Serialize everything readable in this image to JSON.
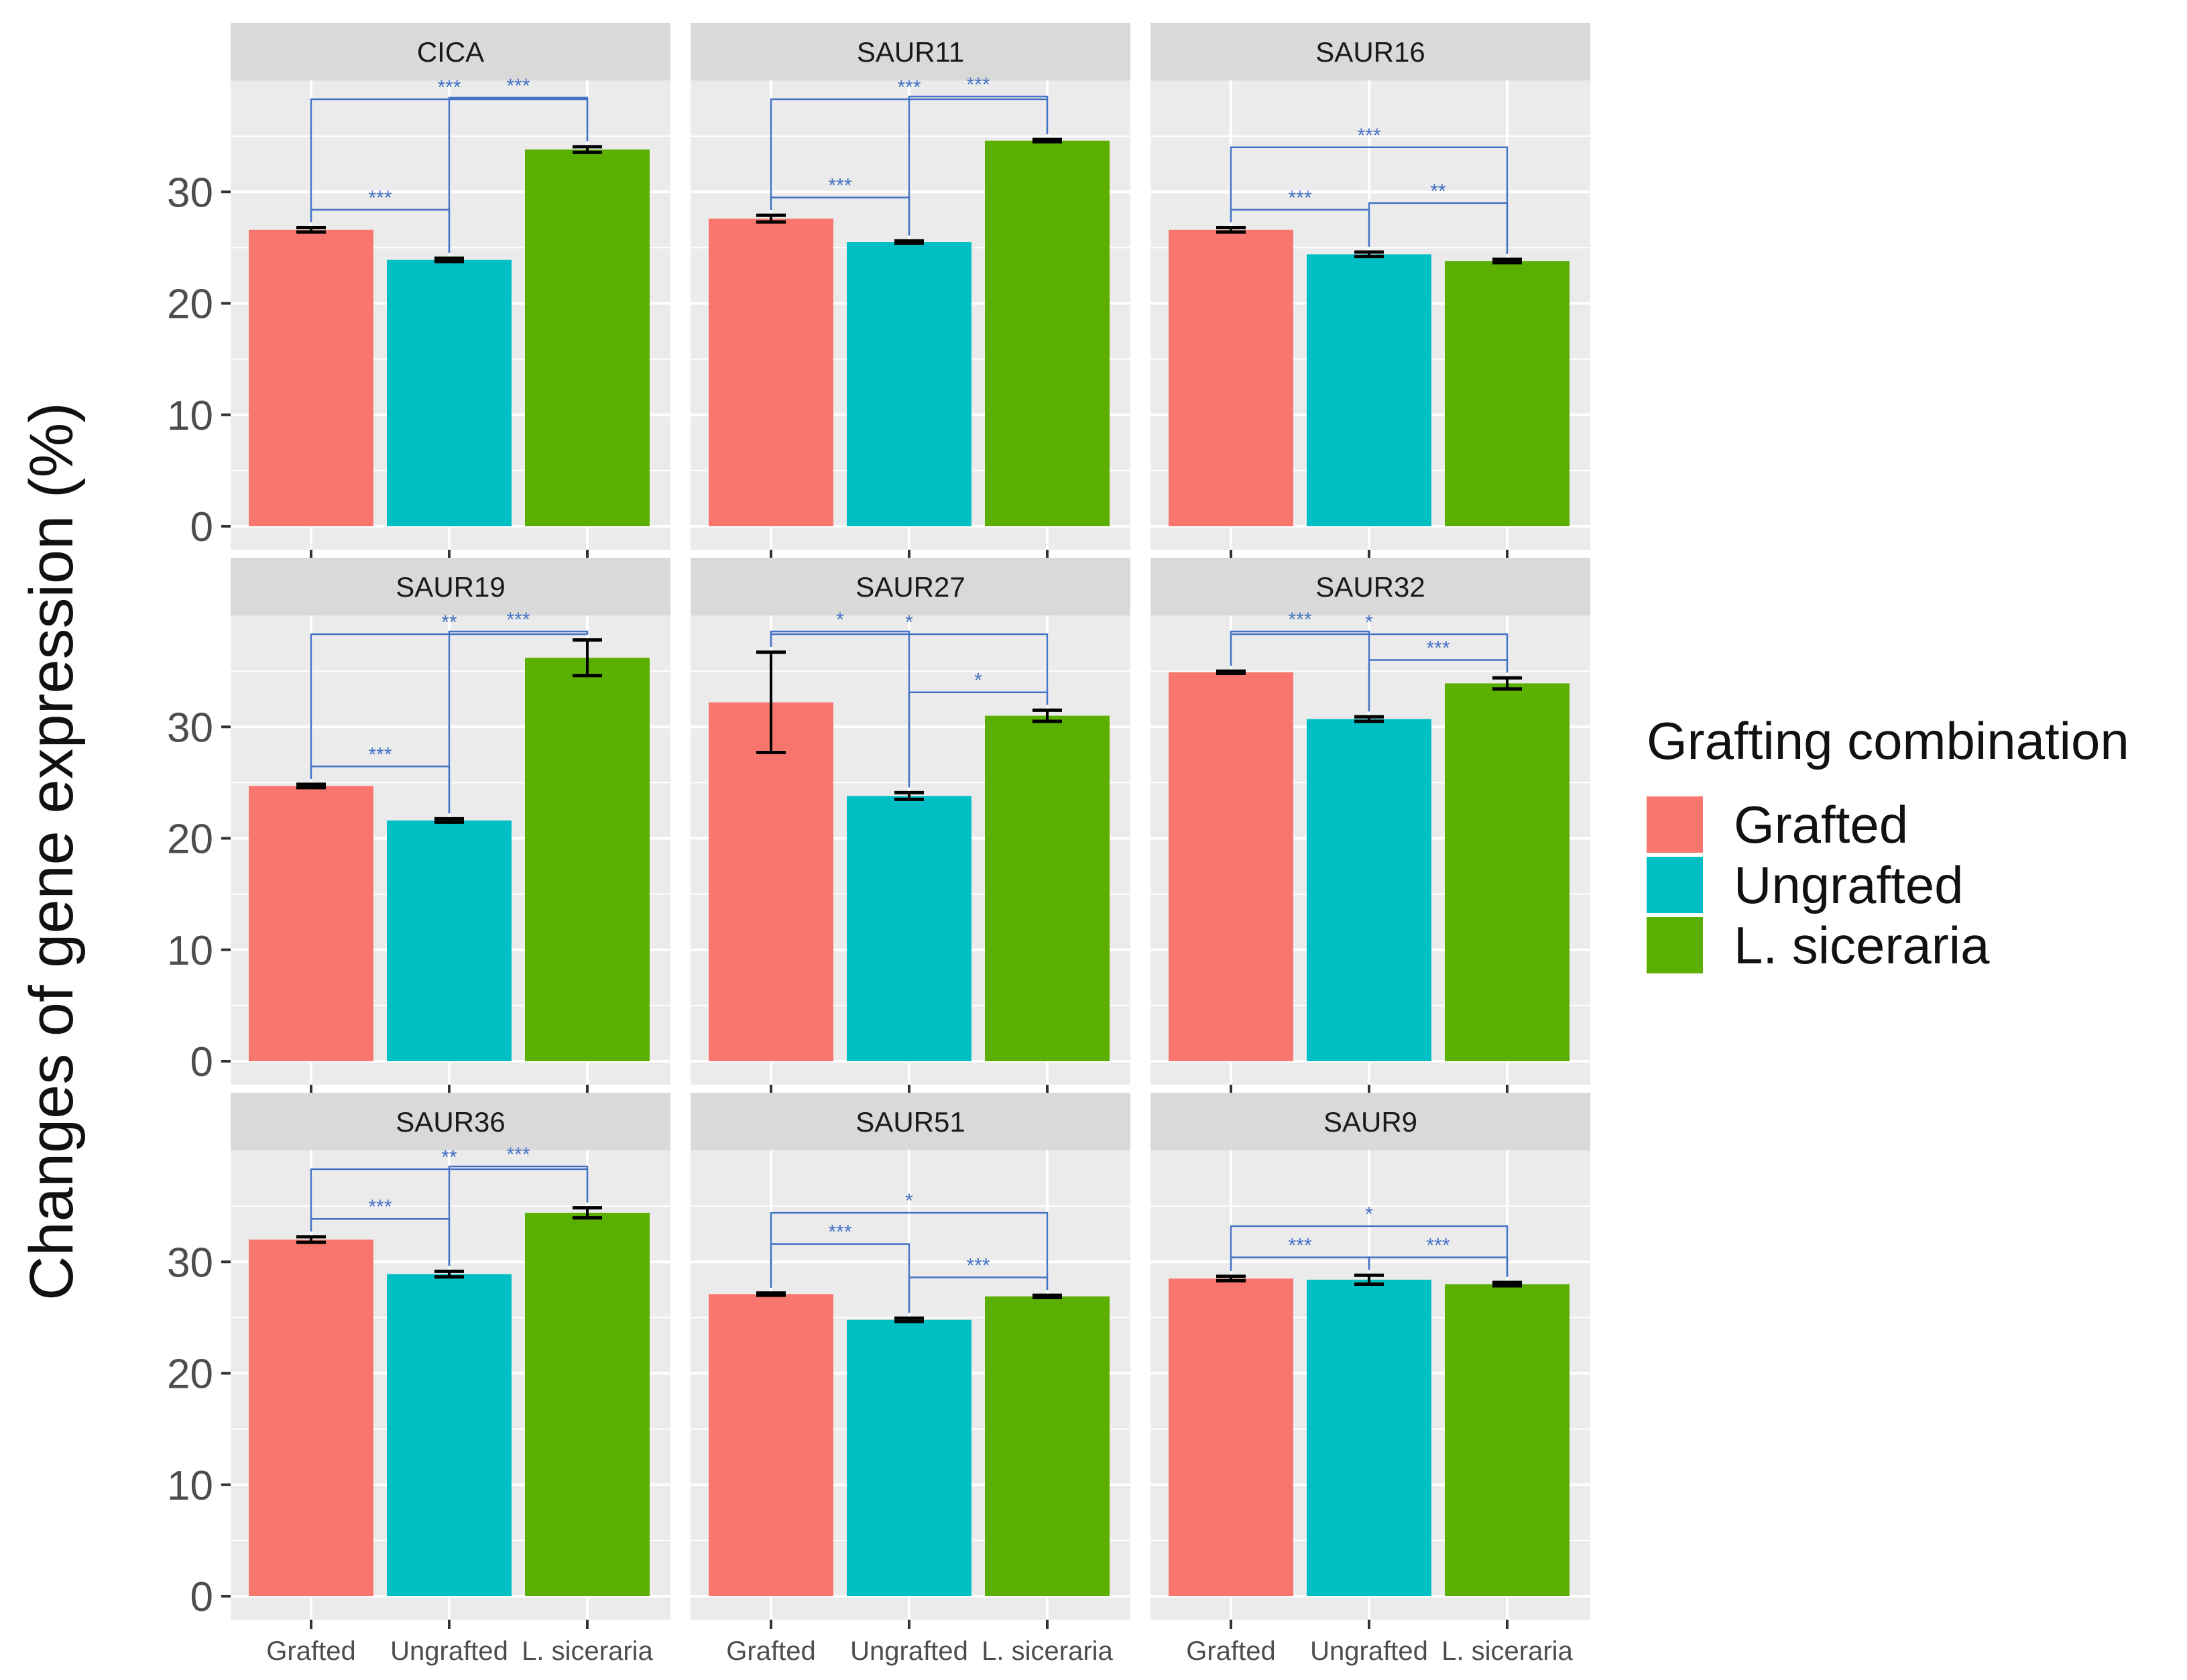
{
  "chart_data": {
    "type": "bar",
    "layout": "facet-grid-3x3",
    "ylabel": "Changes of gene expression (%)",
    "xlabel": "",
    "ylim": [
      0,
      40
    ],
    "yticks": [
      0,
      10,
      20,
      30
    ],
    "categories": [
      "Grafted",
      "Ungrafted",
      "L. siceraria"
    ],
    "legend": {
      "title": "Grafting combination",
      "position": "right",
      "items": [
        {
          "label": "Grafted",
          "color": "#F8766D"
        },
        {
          "label": "Ungrafted",
          "color": "#00BFC4"
        },
        {
          "label": "L. siceraria",
          "color": "#5BAF00"
        }
      ]
    },
    "colors": {
      "panel_bg": "#EBEBEB",
      "strip_bg": "#D9D9D9",
      "grid": "#FFFFFF",
      "bracket": "#4472C4",
      "errorbar": "#000000"
    },
    "panels": [
      {
        "title": "CICA",
        "values": [
          26.6,
          23.9,
          33.8
        ],
        "errors": [
          0.2,
          0.15,
          0.25
        ],
        "comparisons": [
          {
            "from": 0,
            "to": 1,
            "label": "***",
            "level": 0
          },
          {
            "from": 0,
            "to": 2,
            "label": "***",
            "level": 2
          },
          {
            "from": 1,
            "to": 2,
            "label": "***",
            "level": 1
          }
        ]
      },
      {
        "title": "SAUR11",
        "values": [
          27.6,
          25.5,
          34.6
        ],
        "errors": [
          0.3,
          0.1,
          0.1
        ],
        "comparisons": [
          {
            "from": 0,
            "to": 1,
            "label": "***",
            "level": 0
          },
          {
            "from": 0,
            "to": 2,
            "label": "***",
            "level": 2
          },
          {
            "from": 1,
            "to": 2,
            "label": "***",
            "level": 1
          }
        ]
      },
      {
        "title": "SAUR16",
        "values": [
          26.6,
          24.4,
          23.8
        ],
        "errors": [
          0.2,
          0.2,
          0.15
        ],
        "comparisons": [
          {
            "from": 0,
            "to": 1,
            "label": "***",
            "level": 0
          },
          {
            "from": 0,
            "to": 2,
            "label": "***",
            "level": 2
          },
          {
            "from": 1,
            "to": 2,
            "label": "**",
            "level": 1
          }
        ]
      },
      {
        "title": "SAUR19",
        "values": [
          24.7,
          21.6,
          36.2
        ],
        "errors": [
          0.15,
          0.15,
          1.6
        ],
        "comparisons": [
          {
            "from": 0,
            "to": 1,
            "label": "***",
            "level": 0
          },
          {
            "from": 0,
            "to": 2,
            "label": "**",
            "level": 2
          },
          {
            "from": 1,
            "to": 2,
            "label": "***",
            "level": 1
          }
        ]
      },
      {
        "title": "SAUR27",
        "values": [
          32.2,
          23.8,
          31.0
        ],
        "errors": [
          4.5,
          0.3,
          0.5
        ],
        "comparisons": [
          {
            "from": 0,
            "to": 1,
            "label": "*",
            "level": 1
          },
          {
            "from": 0,
            "to": 2,
            "label": "*",
            "level": 2
          },
          {
            "from": 1,
            "to": 2,
            "label": "*",
            "level": 0
          }
        ]
      },
      {
        "title": "SAUR32",
        "values": [
          34.9,
          30.7,
          33.9
        ],
        "errors": [
          0.1,
          0.2,
          0.5
        ],
        "comparisons": [
          {
            "from": 0,
            "to": 1,
            "label": "***",
            "level": 1
          },
          {
            "from": 0,
            "to": 2,
            "label": "*",
            "level": 2
          },
          {
            "from": 1,
            "to": 2,
            "label": "***",
            "level": 0
          }
        ]
      },
      {
        "title": "SAUR36",
        "values": [
          32.0,
          28.9,
          34.4
        ],
        "errors": [
          0.25,
          0.25,
          0.45
        ],
        "comparisons": [
          {
            "from": 0,
            "to": 1,
            "label": "***",
            "level": 0
          },
          {
            "from": 0,
            "to": 2,
            "label": "**",
            "level": 2
          },
          {
            "from": 1,
            "to": 2,
            "label": "***",
            "level": 1
          }
        ]
      },
      {
        "title": "SAUR51",
        "values": [
          27.1,
          24.8,
          26.9
        ],
        "errors": [
          0.1,
          0.15,
          0.1
        ],
        "comparisons": [
          {
            "from": 0,
            "to": 1,
            "label": "***",
            "level": 1
          },
          {
            "from": 0,
            "to": 2,
            "label": "*",
            "level": 2
          },
          {
            "from": 1,
            "to": 2,
            "label": "***",
            "level": 0
          }
        ]
      },
      {
        "title": "SAUR9",
        "values": [
          28.5,
          28.4,
          28.0
        ],
        "errors": [
          0.2,
          0.4,
          0.15
        ],
        "comparisons": [
          {
            "from": 0,
            "to": 1,
            "label": "***",
            "level": 0
          },
          {
            "from": 0,
            "to": 2,
            "label": "*",
            "level": 1
          },
          {
            "from": 1,
            "to": 2,
            "label": "***",
            "level": 0
          }
        ]
      }
    ]
  }
}
